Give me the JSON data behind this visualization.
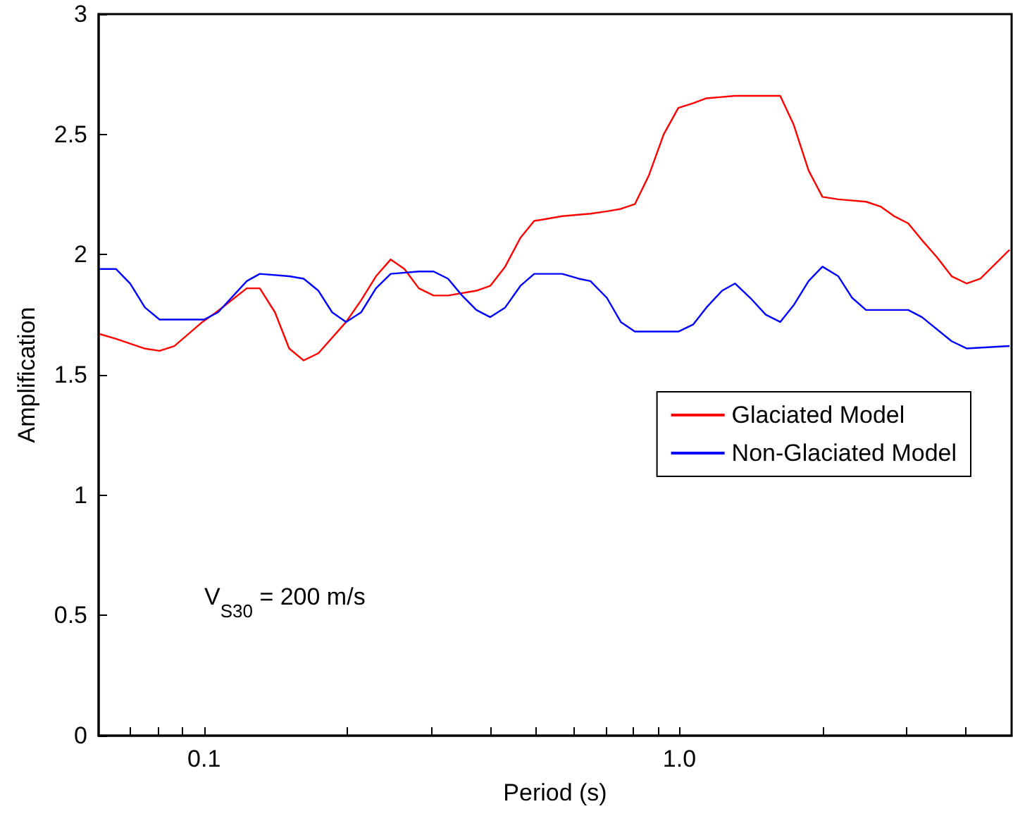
{
  "chart_data": {
    "type": "line",
    "xlabel": "Period (s)",
    "ylabel": "Amplification",
    "log": "x",
    "xlim": [
      0.06,
      5
    ],
    "ylim": [
      0,
      3
    ],
    "xticks": [
      {
        "value": 0.07,
        "label": null
      },
      {
        "value": 0.08,
        "label": null
      },
      {
        "value": 0.09,
        "label": null
      },
      0.1,
      {
        "value": 0.2,
        "label": null
      },
      {
        "value": 0.3,
        "label": null
      },
      {
        "value": 0.4,
        "label": null
      },
      {
        "value": 0.5,
        "label": null
      },
      {
        "value": 0.6,
        "label": null
      },
      {
        "value": 0.7,
        "label": null
      },
      {
        "value": 0.8,
        "label": null
      },
      {
        "value": 0.9,
        "label": null
      },
      {
        "value": 1,
        "label": "1.0"
      },
      {
        "value": 2,
        "label": null
      },
      {
        "value": 3,
        "label": null
      },
      {
        "value": 4,
        "label": null
      }
    ],
    "yticks": [
      0,
      0.5,
      1,
      1.5,
      2,
      2.5,
      3
    ],
    "grid": false,
    "legend": "right",
    "marker": "none",
    "line_style": "solid",
    "annotations": [
      "V$_{S30}$ = 200 m/s"
    ],
    "series": [
      {
        "name": "Glaciated Model",
        "color": "#ff0000",
        "x": [
          0.0603,
          0.0653,
          0.0748,
          0.0806,
          0.0866,
          0.0992,
          0.106,
          0.123,
          0.131,
          0.141,
          0.151,
          0.162,
          0.174,
          0.199,
          0.214,
          0.23,
          0.247,
          0.264,
          0.283,
          0.304,
          0.326,
          0.374,
          0.4,
          0.43,
          0.463,
          0.495,
          0.567,
          0.65,
          0.704,
          0.753,
          0.806,
          0.863,
          0.927,
          0.995,
          1.07,
          1.14,
          1.31,
          1.52,
          1.63,
          1.74,
          1.87,
          2.0,
          2.16,
          2.47,
          2.65,
          2.83,
          3.03,
          3.24,
          3.48,
          3.74,
          4.02,
          4.3,
          4.95
        ],
        "values": [
          1.67,
          1.65,
          1.61,
          1.6,
          1.62,
          1.72,
          1.76,
          1.86,
          1.86,
          1.76,
          1.61,
          1.56,
          1.59,
          1.72,
          1.81,
          1.91,
          1.98,
          1.94,
          1.86,
          1.83,
          1.83,
          1.85,
          1.87,
          1.95,
          2.07,
          2.14,
          2.16,
          2.17,
          2.18,
          2.19,
          2.21,
          2.33,
          2.5,
          2.61,
          2.63,
          2.65,
          2.66,
          2.66,
          2.66,
          2.54,
          2.35,
          2.24,
          2.23,
          2.22,
          2.2,
          2.16,
          2.13,
          2.06,
          1.99,
          1.91,
          1.88,
          1.9,
          2.02
        ]
      },
      {
        "name": "Non-Glaciated Model",
        "color": "#0000ff",
        "x": [
          0.0603,
          0.0653,
          0.0699,
          0.0751,
          0.0806,
          0.1,
          0.107,
          0.123,
          0.131,
          0.151,
          0.162,
          0.174,
          0.186,
          0.199,
          0.214,
          0.23,
          0.247,
          0.283,
          0.304,
          0.326,
          0.349,
          0.374,
          0.4,
          0.43,
          0.463,
          0.495,
          0.567,
          0.614,
          0.65,
          0.704,
          0.753,
          0.806,
          0.995,
          1.07,
          1.14,
          1.23,
          1.31,
          1.41,
          1.52,
          1.63,
          1.74,
          1.87,
          2.0,
          2.16,
          2.31,
          2.47,
          3.03,
          3.24,
          3.74,
          4.02,
          4.95
        ],
        "values": [
          1.94,
          1.94,
          1.88,
          1.78,
          1.73,
          1.73,
          1.76,
          1.89,
          1.92,
          1.91,
          1.9,
          1.85,
          1.76,
          1.72,
          1.76,
          1.86,
          1.92,
          1.93,
          1.93,
          1.9,
          1.83,
          1.77,
          1.74,
          1.78,
          1.87,
          1.92,
          1.92,
          1.9,
          1.89,
          1.82,
          1.72,
          1.68,
          1.68,
          1.71,
          1.78,
          1.85,
          1.88,
          1.82,
          1.75,
          1.72,
          1.79,
          1.89,
          1.95,
          1.91,
          1.82,
          1.77,
          1.77,
          1.74,
          1.64,
          1.61,
          1.62
        ]
      }
    ]
  }
}
